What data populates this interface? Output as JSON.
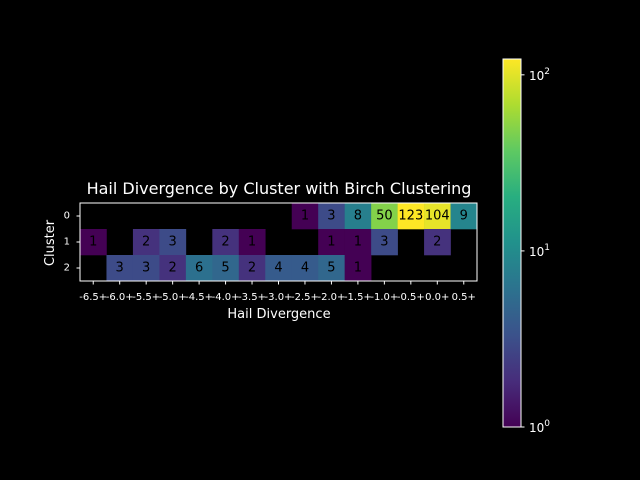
{
  "chart_data": {
    "type": "heatmap",
    "title": "Hail Divergence by Cluster with Birch Clustering",
    "xlabel": "Hail Divergence",
    "ylabel": "Cluster",
    "x_categories": [
      "-6.5+",
      "-6.0+",
      "-5.5+",
      "-5.0+",
      "-4.5+",
      "-4.0+",
      "-3.5+",
      "-3.0+",
      "-2.5+",
      "-2.0+",
      "-1.5+",
      "-1.0+",
      "-0.5+",
      "0.0+",
      "0.5+"
    ],
    "y_categories": [
      "0",
      "1",
      "2"
    ],
    "values": [
      [
        null,
        null,
        null,
        null,
        null,
        null,
        null,
        null,
        1,
        3,
        8,
        50,
        123,
        104,
        9
      ],
      [
        1,
        null,
        2,
        3,
        null,
        2,
        1,
        null,
        null,
        1,
        1,
        3,
        null,
        2,
        null
      ],
      [
        null,
        3,
        3,
        2,
        6,
        5,
        2,
        4,
        4,
        5,
        1,
        null,
        null,
        null,
        null
      ]
    ],
    "colorbar": {
      "scale": "log",
      "colormap": "viridis",
      "min": 1,
      "max": 123,
      "ticks": [
        {
          "base": "10",
          "exp": "0"
        },
        {
          "base": "10",
          "exp": "1"
        },
        {
          "base": "10",
          "exp": "2"
        }
      ]
    },
    "grid": false
  }
}
